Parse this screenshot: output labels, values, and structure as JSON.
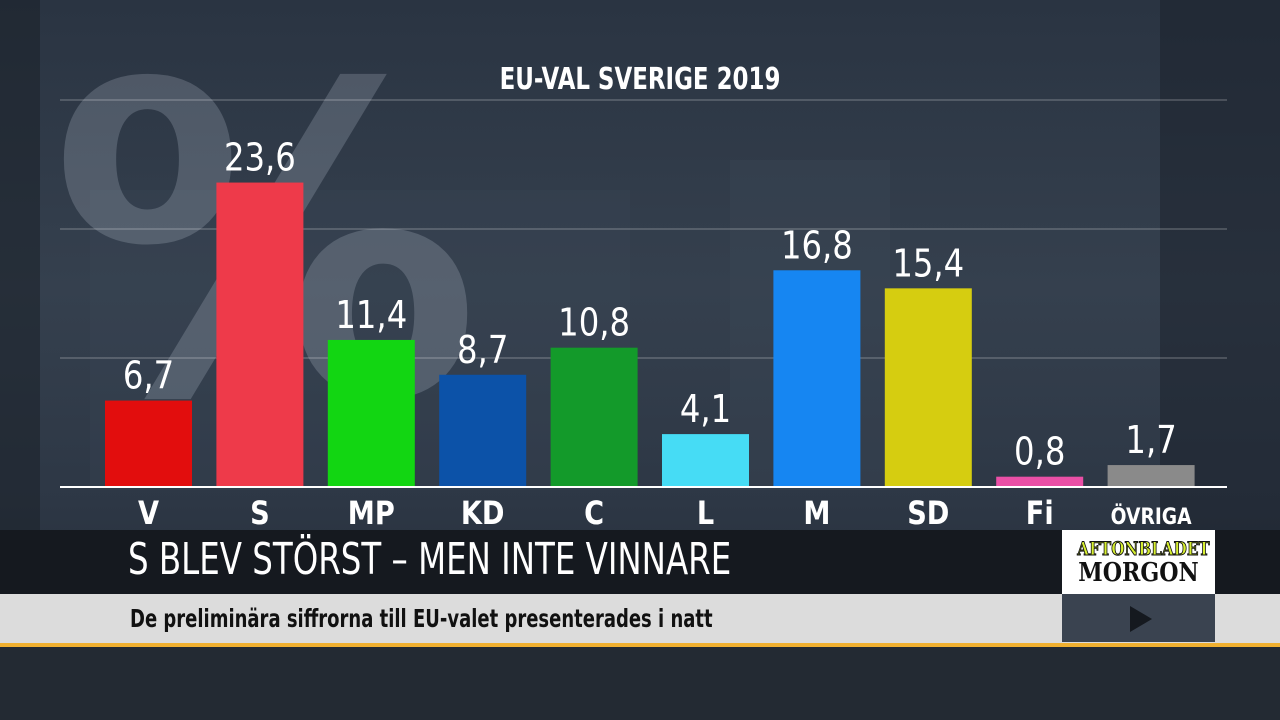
{
  "watermark": "%",
  "chart_data": {
    "type": "bar",
    "title": "EU-VAL SVERIGE 2019",
    "categories": [
      "V",
      "S",
      "MP",
      "KD",
      "C",
      "L",
      "M",
      "SD",
      "Fi",
      "ÖVRIGA"
    ],
    "values": [
      6.7,
      23.6,
      11.4,
      8.7,
      10.8,
      4.1,
      16.8,
      15.4,
      0.8,
      1.7
    ],
    "labels": [
      "6,7",
      "23,6",
      "11,4",
      "8,7",
      "10,8",
      "4,1",
      "16,8",
      "15,4",
      "0,8",
      "1,7"
    ],
    "colors": [
      "#e20d0d",
      "#ee3a4a",
      "#12d612",
      "#0c52a8",
      "#139a2a",
      "#46dcf5",
      "#1686f2",
      "#d6cd10",
      "#ea4fa6",
      "#8a8a8a"
    ],
    "ylim": [
      0,
      30
    ],
    "grid": true,
    "xlabel": "",
    "ylabel": ""
  },
  "lower_third": {
    "headline": "S BLEV STÖRST – MEN INTE VINNARE",
    "subline": "De preliminära siffrorna till EU-valet presenterades i natt",
    "logo_line1": "AFTONBLADET",
    "logo_line2": "MORGON",
    "accent_color": "#f0b030",
    "play_icon": "play-icon"
  }
}
